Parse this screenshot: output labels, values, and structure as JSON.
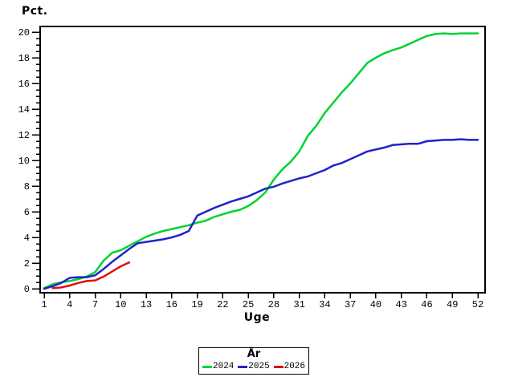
{
  "y_axis_title": "Pct.",
  "x_axis_title": "Uge",
  "legend": {
    "title": "År",
    "items": [
      {
        "label": "2024",
        "color": "#00D233"
      },
      {
        "label": "2025",
        "color": "#2222CC"
      },
      {
        "label": "2026",
        "color": "#DD1111"
      }
    ]
  },
  "chart_data": {
    "type": "line",
    "title": "",
    "xlabel": "Uge",
    "ylabel": "Pct.",
    "legend_title": "År",
    "legend_position": "bottom-center",
    "grid": false,
    "xlim": [
      1,
      52
    ],
    "ylim": [
      0,
      20
    ],
    "x_major_ticks": [
      1,
      4,
      7,
      10,
      13,
      16,
      19,
      22,
      25,
      28,
      31,
      34,
      37,
      40,
      43,
      46,
      49,
      52
    ],
    "y_major_ticks": [
      0,
      2,
      4,
      6,
      8,
      10,
      12,
      14,
      16,
      18,
      20
    ],
    "y_minor_step": 0.5,
    "series": [
      {
        "name": "2024",
        "color": "#00D233",
        "x": [
          1,
          2,
          3,
          4,
          5,
          6,
          7,
          8,
          9,
          10,
          11,
          12,
          13,
          14,
          15,
          16,
          17,
          18,
          19,
          20,
          21,
          22,
          23,
          24,
          25,
          26,
          27,
          28,
          29,
          30,
          31,
          32,
          33,
          34,
          35,
          36,
          37,
          38,
          39,
          40,
          41,
          42,
          43,
          44,
          45,
          46,
          47,
          48,
          49,
          50,
          51,
          52
        ],
        "values": [
          0.05,
          0.35,
          0.5,
          0.6,
          0.75,
          0.95,
          1.3,
          2.2,
          2.8,
          3.0,
          3.35,
          3.7,
          4.05,
          4.3,
          4.5,
          4.65,
          4.8,
          4.95,
          5.15,
          5.3,
          5.6,
          5.8,
          6.0,
          6.15,
          6.45,
          6.9,
          7.5,
          8.5,
          9.3,
          9.9,
          10.7,
          11.9,
          12.7,
          13.7,
          14.5,
          15.3,
          16.0,
          16.8,
          17.6,
          18.0,
          18.35,
          18.6,
          18.8,
          19.1,
          19.4,
          19.7,
          19.85,
          19.9,
          19.85,
          19.9,
          19.9,
          19.9
        ]
      },
      {
        "name": "2025",
        "color": "#2222CC",
        "x": [
          1,
          2,
          3,
          4,
          5,
          6,
          7,
          8,
          9,
          10,
          11,
          12,
          13,
          14,
          15,
          16,
          17,
          18,
          19,
          20,
          21,
          22,
          23,
          24,
          25,
          26,
          27,
          28,
          29,
          30,
          31,
          32,
          33,
          34,
          35,
          36,
          37,
          38,
          39,
          40,
          41,
          42,
          43,
          44,
          45,
          46,
          47,
          48,
          49,
          50,
          51,
          52
        ],
        "values": [
          0.0,
          0.2,
          0.45,
          0.85,
          0.9,
          0.9,
          1.05,
          1.55,
          2.1,
          2.6,
          3.1,
          3.55,
          3.65,
          3.75,
          3.85,
          4.0,
          4.2,
          4.5,
          5.7,
          6.0,
          6.3,
          6.55,
          6.8,
          7.0,
          7.2,
          7.5,
          7.8,
          7.95,
          8.2,
          8.4,
          8.6,
          8.75,
          9.0,
          9.25,
          9.6,
          9.8,
          10.1,
          10.4,
          10.7,
          10.85,
          11.0,
          11.2,
          11.25,
          11.3,
          11.3,
          11.5,
          11.55,
          11.6,
          11.6,
          11.65,
          11.6,
          11.6
        ]
      },
      {
        "name": "2026",
        "color": "#DD1111",
        "x": [
          2,
          3,
          4,
          5,
          6,
          7,
          8,
          9,
          10,
          11
        ],
        "values": [
          0.05,
          0.1,
          0.25,
          0.45,
          0.6,
          0.65,
          0.95,
          1.35,
          1.75,
          2.05
        ]
      }
    ]
  }
}
